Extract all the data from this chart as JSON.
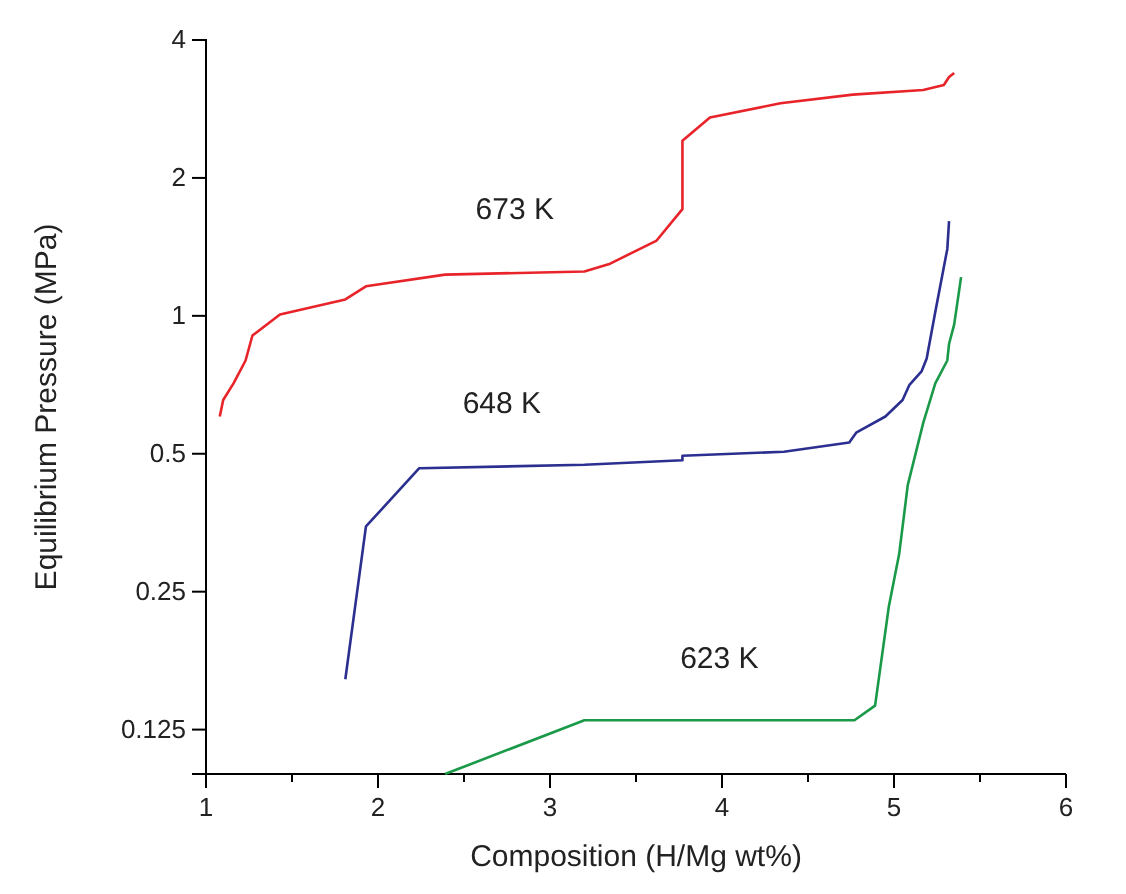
{
  "chart_data": {
    "type": "line",
    "xlabel": "Composition (H/Mg wt%)",
    "ylabel": "Equilibrium Pressure (MPa)",
    "log": "y",
    "grid": false,
    "marker": "none",
    "line_style": "solid",
    "xlim": [
      1,
      6
    ],
    "xticks": [
      1,
      {
        "value": 1.5,
        "label": null
      },
      2,
      {
        "value": 2.5,
        "label": null
      },
      3,
      {
        "value": 3.5,
        "label": null
      },
      4,
      {
        "value": 4.5,
        "label": null
      },
      5,
      {
        "value": 5.5,
        "label": null
      },
      6
    ],
    "ylim": [
      0.1,
      4
    ],
    "yticks": [
      0.125,
      0.25,
      0.5,
      1,
      2,
      4
    ],
    "series": [
      {
        "name": "673 K",
        "color": "#e8242a",
        "x": [
          1.08,
          1.1,
          1.16,
          1.23,
          1.27,
          1.43,
          1.81,
          1.93,
          2.39,
          3.2,
          3.35,
          3.62,
          3.77,
          3.77,
          3.93,
          4.34,
          4.76,
          5.17,
          5.29,
          5.32,
          5.35
        ],
        "values": [
          0.603,
          0.655,
          0.712,
          0.799,
          0.906,
          1.007,
          1.086,
          1.16,
          1.23,
          1.25,
          1.3,
          1.46,
          1.71,
          2.41,
          2.71,
          2.91,
          3.04,
          3.11,
          3.19,
          3.32,
          3.39
        ]
      },
      {
        "name": "648 K",
        "color": "#2b2f8f",
        "x": [
          1.81,
          1.93,
          2.24,
          3.2,
          3.77,
          3.77,
          4.36,
          4.74,
          4.78,
          4.95,
          5.05,
          5.09,
          5.16,
          5.19,
          5.24,
          5.31,
          5.32
        ],
        "values": [
          0.161,
          0.347,
          0.465,
          0.473,
          0.484,
          0.495,
          0.505,
          0.529,
          0.556,
          0.603,
          0.655,
          0.707,
          0.756,
          0.807,
          1.02,
          1.4,
          1.61
        ]
      },
      {
        "name": "623 K",
        "color": "#1a9a48",
        "x": [
          2.39,
          3.2,
          4.77,
          4.89,
          4.97,
          5.03,
          5.08,
          5.17,
          5.24,
          5.31,
          5.32,
          5.35,
          5.39
        ],
        "values": [
          0.1,
          0.131,
          0.131,
          0.141,
          0.232,
          0.302,
          0.427,
          0.584,
          0.712,
          0.799,
          0.868,
          0.958,
          1.215
        ]
      }
    ]
  }
}
